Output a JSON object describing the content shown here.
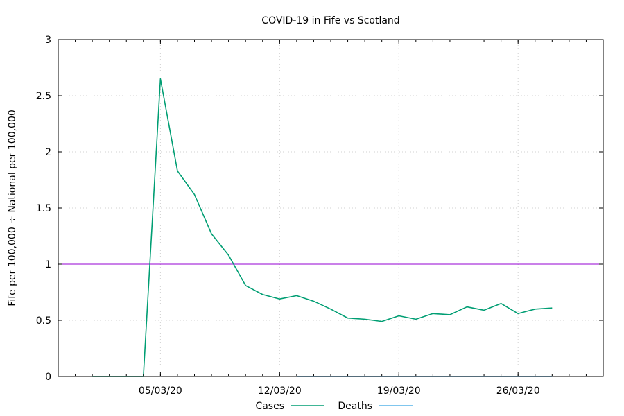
{
  "chart_data": {
    "type": "line",
    "title": "COVID-19 in Fife vs Scotland",
    "ylabel": "Fife per 100,000 ÷ National per 100,000",
    "xlabel": "",
    "ylim": [
      0,
      3
    ],
    "xlim": [
      "2020-02-28",
      "2020-03-31"
    ],
    "grid": true,
    "legend_position": "bottom",
    "y_ticks": [
      "0",
      "0.5",
      "1",
      "1.5",
      "2",
      "2.5",
      "3"
    ],
    "x_ticks": [
      {
        "date": "2020-03-05",
        "label": "05/03/20"
      },
      {
        "date": "2020-03-12",
        "label": "12/03/20"
      },
      {
        "date": "2020-03-19",
        "label": "19/03/20"
      },
      {
        "date": "2020-03-26",
        "label": "26/03/20"
      }
    ],
    "reference_line": {
      "y": 1,
      "color": "#9400d3"
    },
    "series": [
      {
        "name": "Cases",
        "color": "#009e73",
        "points": [
          {
            "x": "2020-03-01",
            "y": 0
          },
          {
            "x": "2020-03-02",
            "y": 0
          },
          {
            "x": "2020-03-03",
            "y": 0
          },
          {
            "x": "2020-03-04",
            "y": 0
          },
          {
            "x": "2020-03-05",
            "y": 2.65
          },
          {
            "x": "2020-03-06",
            "y": 1.83
          },
          {
            "x": "2020-03-07",
            "y": 1.62
          },
          {
            "x": "2020-03-08",
            "y": 1.27
          },
          {
            "x": "2020-03-09",
            "y": 1.08
          },
          {
            "x": "2020-03-10",
            "y": 0.81
          },
          {
            "x": "2020-03-11",
            "y": 0.73
          },
          {
            "x": "2020-03-12",
            "y": 0.69
          },
          {
            "x": "2020-03-13",
            "y": 0.72
          },
          {
            "x": "2020-03-14",
            "y": 0.67
          },
          {
            "x": "2020-03-15",
            "y": 0.6
          },
          {
            "x": "2020-03-16",
            "y": 0.52
          },
          {
            "x": "2020-03-17",
            "y": 0.51
          },
          {
            "x": "2020-03-18",
            "y": 0.49
          },
          {
            "x": "2020-03-19",
            "y": 0.54
          },
          {
            "x": "2020-03-20",
            "y": 0.51
          },
          {
            "x": "2020-03-21",
            "y": 0.56
          },
          {
            "x": "2020-03-22",
            "y": 0.55
          },
          {
            "x": "2020-03-23",
            "y": 0.62
          },
          {
            "x": "2020-03-24",
            "y": 0.59
          },
          {
            "x": "2020-03-25",
            "y": 0.65
          },
          {
            "x": "2020-03-26",
            "y": 0.56
          },
          {
            "x": "2020-03-27",
            "y": 0.6
          },
          {
            "x": "2020-03-28",
            "y": 0.61
          }
        ]
      },
      {
        "name": "Deaths",
        "color": "#56b4e9",
        "points": [
          {
            "x": "2020-03-13",
            "y": 0
          },
          {
            "x": "2020-03-14",
            "y": 0
          },
          {
            "x": "2020-03-15",
            "y": 0
          },
          {
            "x": "2020-03-16",
            "y": 0
          },
          {
            "x": "2020-03-17",
            "y": 0
          },
          {
            "x": "2020-03-18",
            "y": 0
          },
          {
            "x": "2020-03-19",
            "y": 0
          },
          {
            "x": "2020-03-20",
            "y": 0
          },
          {
            "x": "2020-03-21",
            "y": 0
          },
          {
            "x": "2020-03-22",
            "y": 0
          },
          {
            "x": "2020-03-23",
            "y": 0
          },
          {
            "x": "2020-03-24",
            "y": 0
          },
          {
            "x": "2020-03-25",
            "y": 0
          },
          {
            "x": "2020-03-26",
            "y": 0
          },
          {
            "x": "2020-03-27",
            "y": 0
          },
          {
            "x": "2020-03-28",
            "y": 0
          }
        ]
      }
    ]
  }
}
